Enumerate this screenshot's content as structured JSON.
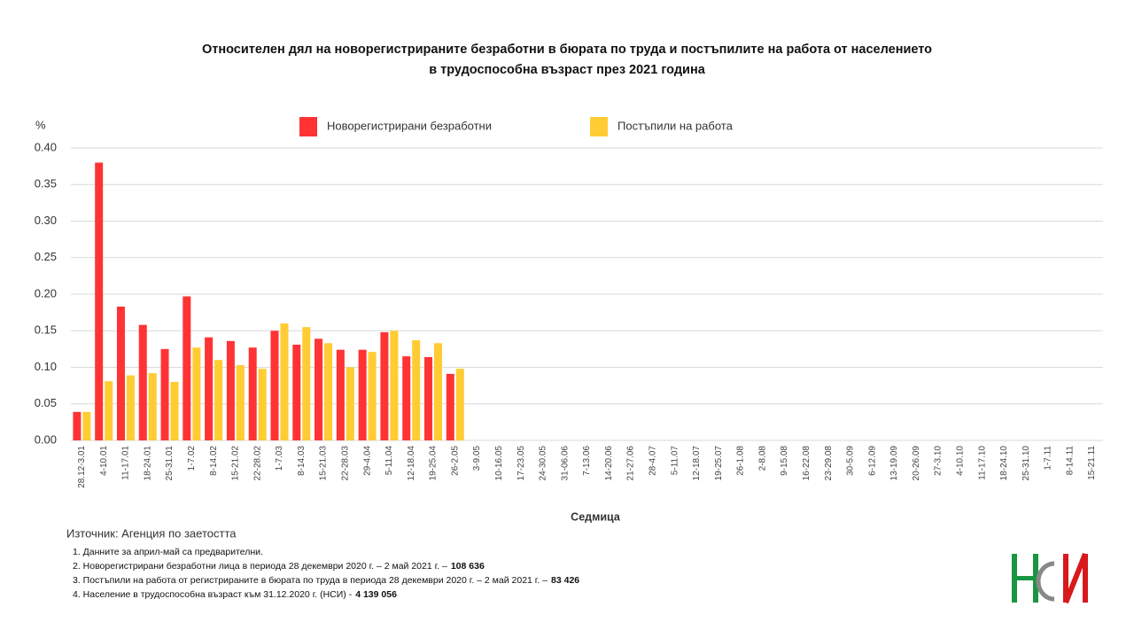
{
  "chart_data": {
    "type": "bar",
    "title": [
      "Относителен дял на новорегистрираните безработни в бюрата по труда и постъпилите на работа от населението",
      "в трудоспособна възраст през 2021 година"
    ],
    "y_label": "%",
    "x_label": "Седмица",
    "source": "Източник: Агенция по заетостта",
    "notes": [
      {
        "text": "1.  Данните за април-май са предварителни."
      },
      {
        "text": "2.  Новорегистрирани безработни лица в периода 28 декември  2020 г. – 2 май 2021 г. –",
        "bold": "108 636"
      },
      {
        "text": "3.  Постъпили на работа от регистрираните в бюрата по труда в периода 28 декември  2020 г. – 2 май 2021 г. –",
        "bold": "83 426"
      },
      {
        "text": "4.  Население в трудоспособна възраст към 31.12.2020 г. (НСИ)  -",
        "bold": "4 139 056"
      }
    ],
    "categories": [
      "28.12-3.01",
      "4-10.01",
      "11-17.01",
      "18-24.01",
      "25-31.01",
      "1-7.02",
      "8-14.02",
      "15-21.02",
      "22-28.02",
      "1-7.03",
      "8-14.03",
      "15-21.03",
      "22-28.03",
      "29-4.04",
      "5-11.04",
      "12-18.04",
      "19-25.04",
      "26-2.05",
      "3-9.05",
      "10-16.05",
      "17-23.05",
      "24-30.05",
      "31-06.06",
      "7-13.06",
      "14-20.06",
      "21-27.06",
      "28-4.07",
      "5-11.07",
      "12-18.07",
      "19-25.07",
      "26-1.08",
      "2-8.08",
      "9-15.08",
      "16-22.08",
      "23-29.08",
      "30-5.09",
      "6-12.09",
      "13-19.09",
      "20-26.09",
      "27-3.10",
      "4-10.10",
      "11-17.10",
      "18-24.10",
      "25-31.10",
      "1-7.11",
      "8-14.11",
      "15-21.11"
    ],
    "series": [
      {
        "name": "Новорегистрирани безработни",
        "color": "#ff3333",
        "values": [
          0.039,
          0.38,
          0.183,
          0.158,
          0.125,
          0.197,
          0.141,
          0.136,
          0.127,
          0.15,
          0.131,
          0.139,
          0.124,
          0.124,
          0.148,
          0.115,
          0.114,
          0.091,
          null,
          null,
          null,
          null,
          null,
          null,
          null,
          null,
          null,
          null,
          null,
          null,
          null,
          null,
          null,
          null,
          null,
          null,
          null,
          null,
          null,
          null,
          null,
          null,
          null,
          null,
          null,
          null,
          null
        ]
      },
      {
        "name": "Постъпили на работа",
        "color": "#ffcc33",
        "values": [
          0.039,
          0.081,
          0.089,
          0.092,
          0.08,
          0.127,
          0.11,
          0.103,
          0.098,
          0.16,
          0.155,
          0.133,
          0.1,
          0.121,
          0.15,
          0.137,
          0.133,
          0.098,
          null,
          null,
          null,
          null,
          null,
          null,
          null,
          null,
          null,
          null,
          null,
          null,
          null,
          null,
          null,
          null,
          null,
          null,
          null,
          null,
          null,
          null,
          null,
          null,
          null,
          null,
          null,
          null,
          null
        ]
      }
    ],
    "ylim": [
      0,
      0.4
    ],
    "yticks": [
      {
        "value": 0,
        "label": "0.00"
      },
      {
        "value": 0.05,
        "label": "0.05"
      },
      {
        "value": 0.1,
        "label": "0.10"
      },
      {
        "value": 0.15,
        "label": "0.15"
      },
      {
        "value": 0.2,
        "label": "0.20"
      },
      {
        "value": 0.25,
        "label": "0.25"
      },
      {
        "value": 0.3,
        "label": "0.30"
      },
      {
        "value": 0.35,
        "label": "0.35"
      },
      {
        "value": 0.4,
        "label": "0.40"
      }
    ],
    "grid": true
  }
}
